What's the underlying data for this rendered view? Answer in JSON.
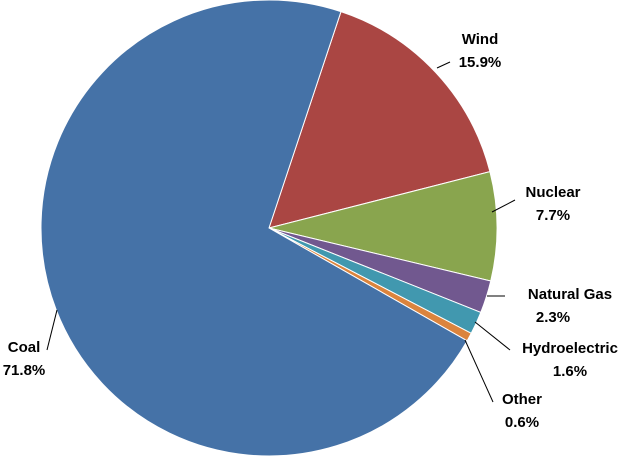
{
  "chart_data": {
    "type": "pie",
    "title": "",
    "slices": [
      {
        "name": "Wind",
        "value": 15.9,
        "label": "15.9%",
        "color": "#AA4643"
      },
      {
        "name": "Nuclear",
        "value": 7.7,
        "label": "7.7%",
        "color": "#89A54E"
      },
      {
        "name": "Natural Gas",
        "value": 2.3,
        "label": "2.3%",
        "color": "#71588F"
      },
      {
        "name": "Hydroelectric",
        "value": 1.6,
        "label": "1.6%",
        "color": "#4198AF"
      },
      {
        "name": "Other",
        "value": 0.6,
        "label": "0.6%",
        "color": "#DB843D"
      },
      {
        "name": "Coal",
        "value": 71.8,
        "label": "71.8%",
        "color": "#4572A7"
      }
    ],
    "legend": "none",
    "label_style": "outside with leader lines"
  }
}
